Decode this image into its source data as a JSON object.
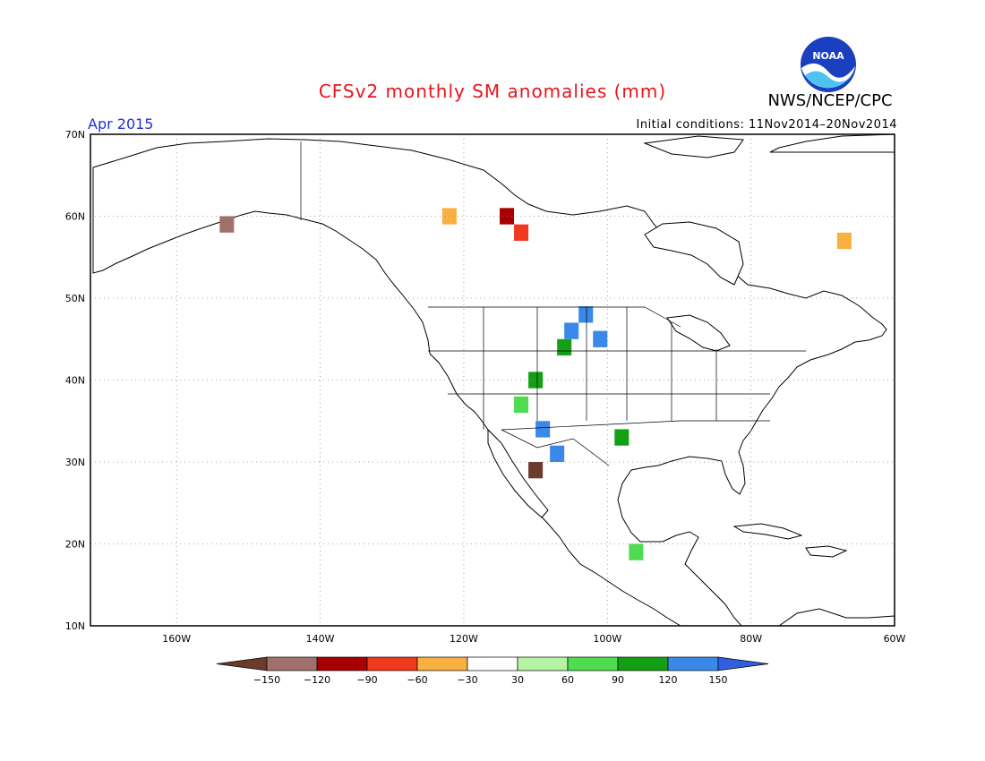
{
  "title": "CFSv2 monthly SM anomalies (mm)",
  "organization": "NWS/NCEP/CPC",
  "logo_text": "NOAA",
  "period": "Apr 2015",
  "initial_conditions": "Initial conditions: 11Nov2014–20Nov2014",
  "map": {
    "lon_range": [
      -172,
      -60
    ],
    "lat_range": [
      10,
      70
    ],
    "lat_ticks": [
      "10N",
      "20N",
      "30N",
      "40N",
      "50N",
      "60N",
      "70N"
    ],
    "lon_ticks": [
      "160W",
      "140W",
      "120W",
      "100W",
      "80W",
      "60W"
    ],
    "grid": "dotted"
  },
  "colorbar": {
    "labels": [
      "−150",
      "−120",
      "−90",
      "−60",
      "−30",
      "30",
      "60",
      "90",
      "120",
      "150"
    ],
    "colors": {
      "lt_m150": "#6b3b2c",
      "m150_m120": "#a0716a",
      "m120_m90": "#a60000",
      "m90_m60": "#f0381e",
      "m60_m30": "#f8b040",
      "m30_30": "#ffffff",
      "30_60": "#b4f4a4",
      "60_90": "#50dc50",
      "90_120": "#14a014",
      "120_150": "#3a88e8",
      "gt_150": "#3060e0"
    }
  },
  "anomaly_cells": [
    {
      "lon": -103,
      "lat": 48,
      "class": "120_150"
    },
    {
      "lon": -105,
      "lat": 46,
      "class": "120_150"
    },
    {
      "lon": -101,
      "lat": 45,
      "class": "120_150"
    },
    {
      "lon": -107,
      "lat": 31,
      "class": "120_150"
    },
    {
      "lon": -109,
      "lat": 34,
      "class": "120_150"
    },
    {
      "lon": -106,
      "lat": 44,
      "class": "90_120"
    },
    {
      "lon": -110,
      "lat": 40,
      "class": "90_120"
    },
    {
      "lon": -98,
      "lat": 33,
      "class": "90_120"
    },
    {
      "lon": -112,
      "lat": 37,
      "class": "60_90"
    },
    {
      "lon": -96,
      "lat": 19,
      "class": "60_90"
    },
    {
      "lon": -114,
      "lat": 60,
      "class": "m120_m90"
    },
    {
      "lon": -112,
      "lat": 58,
      "class": "m90_m60"
    },
    {
      "lon": -122,
      "lat": 60,
      "class": "m60_m30"
    },
    {
      "lon": -67,
      "lat": 57,
      "class": "m60_m30"
    },
    {
      "lon": -110,
      "lat": 29,
      "class": "lt_m150"
    },
    {
      "lon": -153,
      "lat": 59,
      "class": "m150_m120"
    }
  ]
}
